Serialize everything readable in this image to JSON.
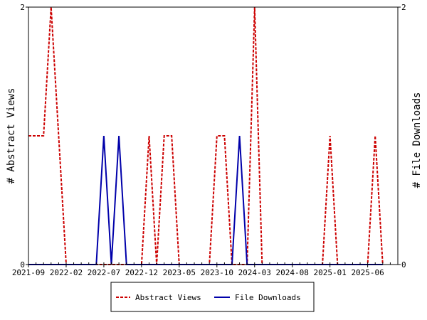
{
  "chart_data": {
    "type": "line",
    "title": "",
    "xlabel": "",
    "ylabel_left": "# Abstract Views",
    "ylabel_right": "# File Downloads",
    "ylim_left": [
      0,
      2
    ],
    "ylim_right": [
      0,
      2
    ],
    "y_ticks_left": [
      "0",
      "2"
    ],
    "y_ticks_right": [
      "0",
      "2"
    ],
    "x_range": [
      "2021-09",
      "2025-10"
    ],
    "x_tick_labels": [
      "2021-09",
      "2022-02",
      "2022-07",
      "2022-12",
      "2023-05",
      "2023-10",
      "2024-03",
      "2024-08",
      "2025-01",
      "2025-06"
    ],
    "grid": false,
    "legend_position": "bottom",
    "series": [
      {
        "name": "Abstract Views",
        "color": "#cc0000",
        "style": "dashed",
        "axis": "left",
        "points": [
          [
            "2021-09",
            1
          ],
          [
            "2021-10",
            1
          ],
          [
            "2021-11",
            1
          ],
          [
            "2021-12",
            2
          ],
          [
            "2022-01",
            1
          ],
          [
            "2022-02",
            0
          ],
          [
            "2022-03",
            0
          ],
          [
            "2022-04",
            0
          ],
          [
            "2022-05",
            0
          ],
          [
            "2022-06",
            0
          ],
          [
            "2022-07",
            0
          ],
          [
            "2022-08",
            0
          ],
          [
            "2022-09",
            0
          ],
          [
            "2022-10",
            0
          ],
          [
            "2022-11",
            0
          ],
          [
            "2022-12",
            0
          ],
          [
            "2023-01",
            1
          ],
          [
            "2023-02",
            0
          ],
          [
            "2023-03",
            1
          ],
          [
            "2023-04",
            1
          ],
          [
            "2023-05",
            0
          ],
          [
            "2023-06",
            0
          ],
          [
            "2023-07",
            0
          ],
          [
            "2023-08",
            0
          ],
          [
            "2023-09",
            0
          ],
          [
            "2023-10",
            1
          ],
          [
            "2023-11",
            1
          ],
          [
            "2023-12",
            0
          ],
          [
            "2024-01",
            0
          ],
          [
            "2024-02",
            0
          ],
          [
            "2024-03",
            2
          ],
          [
            "2024-04",
            0
          ],
          [
            "2024-05",
            0
          ],
          [
            "2024-06",
            0
          ],
          [
            "2024-07",
            0
          ],
          [
            "2024-08",
            0
          ],
          [
            "2024-09",
            0
          ],
          [
            "2024-10",
            0
          ],
          [
            "2024-11",
            0
          ],
          [
            "2024-12",
            0
          ],
          [
            "2025-01",
            1
          ],
          [
            "2025-02",
            0
          ],
          [
            "2025-03",
            0
          ],
          [
            "2025-04",
            0
          ],
          [
            "2025-05",
            0
          ],
          [
            "2025-06",
            0
          ],
          [
            "2025-07",
            1
          ],
          [
            "2025-08",
            0
          ]
        ]
      },
      {
        "name": "File Downloads",
        "color": "#0000aa",
        "style": "solid",
        "axis": "right",
        "points": [
          [
            "2021-09",
            0
          ],
          [
            "2021-10",
            0
          ],
          [
            "2021-11",
            0
          ],
          [
            "2021-12",
            0
          ],
          [
            "2022-01",
            0
          ],
          [
            "2022-02",
            0
          ],
          [
            "2022-03",
            0
          ],
          [
            "2022-04",
            0
          ],
          [
            "2022-05",
            0
          ],
          [
            "2022-06",
            0
          ],
          [
            "2022-07",
            1
          ],
          [
            "2022-08",
            0
          ],
          [
            "2022-09",
            1
          ],
          [
            "2022-10",
            0
          ],
          [
            "2022-11",
            0
          ],
          [
            "2022-12",
            0
          ],
          [
            "2023-01",
            0
          ],
          [
            "2023-02",
            0
          ],
          [
            "2023-03",
            0
          ],
          [
            "2023-04",
            0
          ],
          [
            "2023-05",
            0
          ],
          [
            "2023-06",
            0
          ],
          [
            "2023-07",
            0
          ],
          [
            "2023-08",
            0
          ],
          [
            "2023-09",
            0
          ],
          [
            "2023-10",
            0
          ],
          [
            "2023-11",
            0
          ],
          [
            "2023-12",
            0
          ],
          [
            "2024-01",
            1
          ],
          [
            "2024-02",
            0
          ],
          [
            "2024-03",
            0
          ],
          [
            "2024-04",
            0
          ],
          [
            "2024-05",
            0
          ],
          [
            "2024-06",
            0
          ],
          [
            "2024-07",
            0
          ],
          [
            "2024-08",
            0
          ],
          [
            "2024-09",
            0
          ],
          [
            "2024-10",
            0
          ],
          [
            "2024-11",
            0
          ],
          [
            "2024-12",
            0
          ],
          [
            "2025-01",
            0
          ],
          [
            "2025-02",
            0
          ],
          [
            "2025-03",
            0
          ],
          [
            "2025-04",
            0
          ],
          [
            "2025-05",
            0
          ],
          [
            "2025-06",
            0
          ],
          [
            "2025-07",
            0
          ],
          [
            "2025-08",
            0
          ]
        ]
      }
    ]
  }
}
